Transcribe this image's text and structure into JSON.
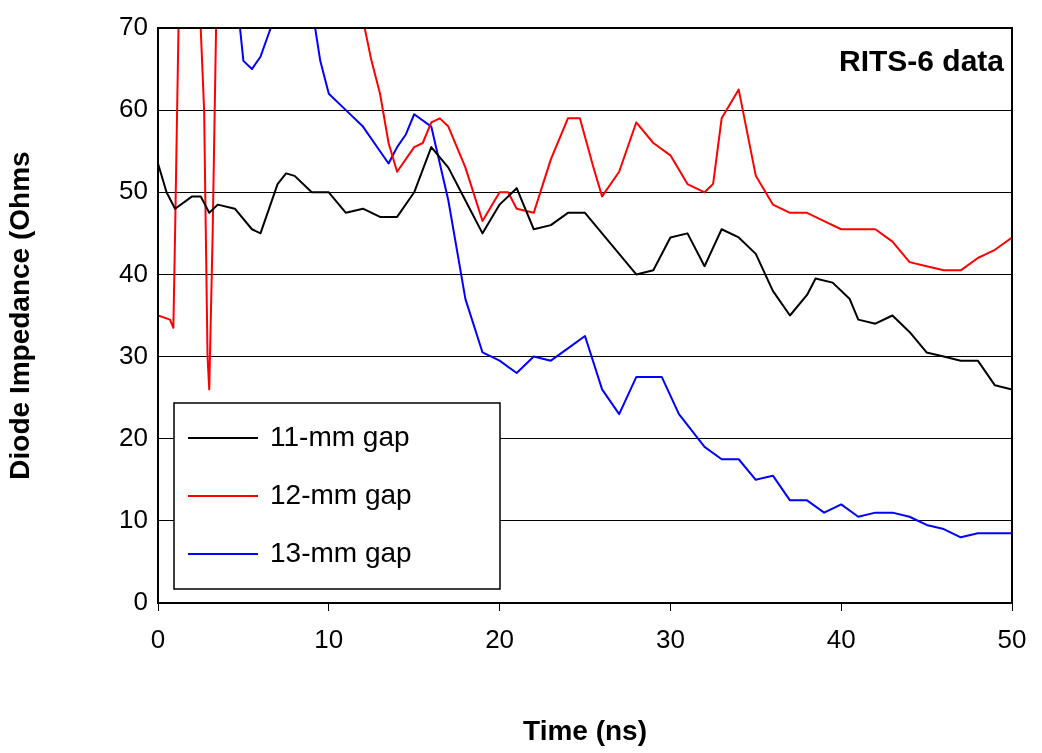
{
  "chart_data": {
    "type": "line",
    "xlabel": "Time (ns)",
    "ylabel": "Diode Impedance (Ohms",
    "annotations": [
      "RITS-6 data"
    ],
    "xlim": [
      0,
      50
    ],
    "xticks": [
      0,
      10,
      20,
      30,
      40,
      50
    ],
    "ylim": [
      0,
      70
    ],
    "yticks": [
      0,
      10,
      20,
      30,
      40,
      50,
      60,
      70
    ],
    "grid": "y",
    "legend": "bottom left",
    "marker": "none",
    "line_style": "solid",
    "series": [
      {
        "name": "11-mm gap",
        "color": "#000000",
        "x": [
          0,
          0.5,
          1,
          2,
          2.5,
          3,
          3.5,
          4.5,
          5.5,
          6,
          7,
          7.5,
          8,
          9,
          10,
          11,
          12,
          13,
          14,
          15,
          16,
          17,
          18,
          19,
          20,
          21,
          22,
          23,
          24,
          25,
          26,
          27,
          28,
          29,
          30,
          31,
          32,
          33,
          34,
          35,
          36,
          37,
          38,
          38.5,
          39.5,
          40.5,
          41,
          42,
          43,
          44,
          45,
          46,
          47,
          48,
          49,
          50
        ],
        "values": [
          53.5,
          50,
          48,
          49.5,
          49.5,
          47.5,
          48.5,
          48,
          45.5,
          45,
          51,
          52.3,
          52,
          50,
          50,
          47.5,
          48,
          47,
          47,
          50,
          55.5,
          53,
          49,
          45,
          48.5,
          50.5,
          45.5,
          46,
          47.5,
          47.5,
          45,
          42.5,
          40,
          40.5,
          44.5,
          45,
          41,
          45.5,
          44.5,
          42.5,
          38,
          35,
          37.5,
          39.5,
          39,
          37,
          34.5,
          34,
          35,
          33,
          30.5,
          30,
          29.5,
          29.5,
          26.5,
          26
        ]
      },
      {
        "name": "12-mm gap",
        "color": "#ff0000",
        "x": [
          0,
          0.7,
          0.9,
          1,
          1.2,
          1.8,
          2.5,
          2.7,
          2.9,
          3,
          3.2,
          3.4,
          8,
          12.1,
          12.5,
          13,
          13.5,
          14,
          15,
          15.5,
          16,
          16.5,
          17,
          18,
          19,
          20,
          20.5,
          21,
          22,
          23,
          24,
          24.7,
          25.5,
          26,
          27,
          28,
          29,
          30,
          31,
          32,
          32.5,
          33,
          34,
          35,
          36,
          37,
          38,
          39,
          40,
          42,
          43,
          44,
          45,
          46,
          47,
          48,
          49,
          50
        ],
        "values": [
          35,
          34.5,
          33.5,
          45,
          70,
          null,
          70,
          60,
          30,
          26,
          45,
          70,
          null,
          70,
          66,
          62,
          56,
          52.5,
          55.5,
          56,
          58.5,
          59,
          58,
          53,
          46.5,
          50,
          50,
          48,
          47.5,
          54,
          59,
          59,
          53,
          49.5,
          52.5,
          58.5,
          56,
          54.5,
          51,
          50,
          51,
          59,
          62.5,
          52,
          48.5,
          47.5,
          47.5,
          46.5,
          45.5,
          45.5,
          44,
          41.5,
          41,
          40.5,
          40.5,
          42,
          43,
          44.5
        ]
      },
      {
        "name": "13-mm gap",
        "color": "#0000ff",
        "x": [
          4.8,
          5,
          5.5,
          6,
          6.6,
          8,
          9.2,
          9.5,
          10,
          11,
          12,
          13,
          13.5,
          14,
          14.5,
          15,
          16,
          17,
          18,
          19,
          20,
          21,
          22,
          23,
          24,
          25,
          26,
          27,
          28,
          29.5,
          30.5,
          32,
          33,
          34,
          35,
          36,
          37,
          38,
          39,
          40,
          41,
          42,
          43,
          44,
          45,
          46,
          47,
          48,
          50
        ],
        "values": [
          70,
          66,
          65,
          66.5,
          70,
          null,
          70,
          66,
          62,
          60,
          58,
          55,
          53.5,
          55.5,
          57,
          59.5,
          58,
          49,
          37,
          30.5,
          29.5,
          28,
          30,
          29.5,
          31,
          32.5,
          26,
          23,
          27.5,
          27.5,
          23,
          19,
          17.5,
          17.5,
          15,
          15.5,
          12.5,
          12.5,
          11,
          12,
          10.5,
          11,
          11,
          10.5,
          9.5,
          9,
          8,
          8.5,
          8.5
        ]
      }
    ]
  }
}
